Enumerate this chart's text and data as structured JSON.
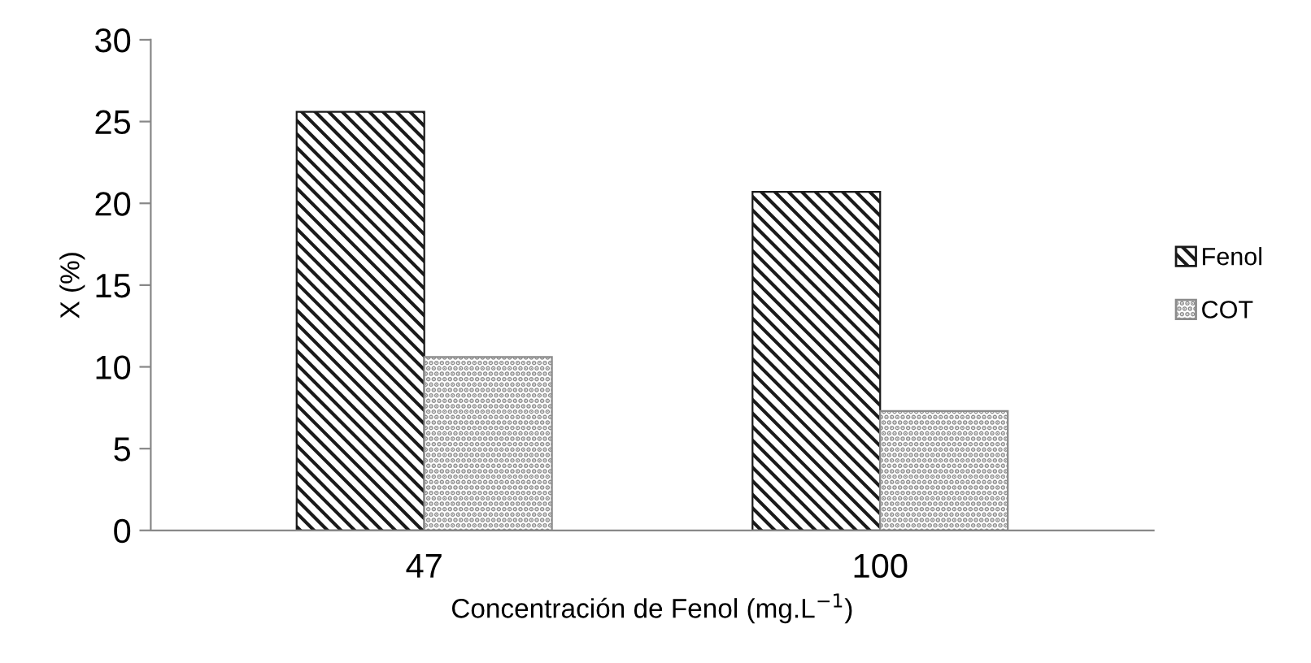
{
  "chart_data": {
    "type": "bar",
    "xlabel": "Concentración de Fenol (mg.L$^{−1}$)",
    "ylabel": "X (%)",
    "categories": [
      "47",
      "100"
    ],
    "series": [
      {
        "name": "Fenol",
        "color": "#1a1a1a",
        "values": [
          25.6,
          20.7
        ]
      },
      {
        "name": "COT",
        "color": "#8c8c8c",
        "values": [
          10.6,
          7.3
        ]
      }
    ],
    "ylim": [
      0,
      30
    ],
    "yticks": [
      0,
      5,
      10,
      15,
      20,
      25,
      30
    ],
    "grid": false,
    "legend": "right"
  }
}
